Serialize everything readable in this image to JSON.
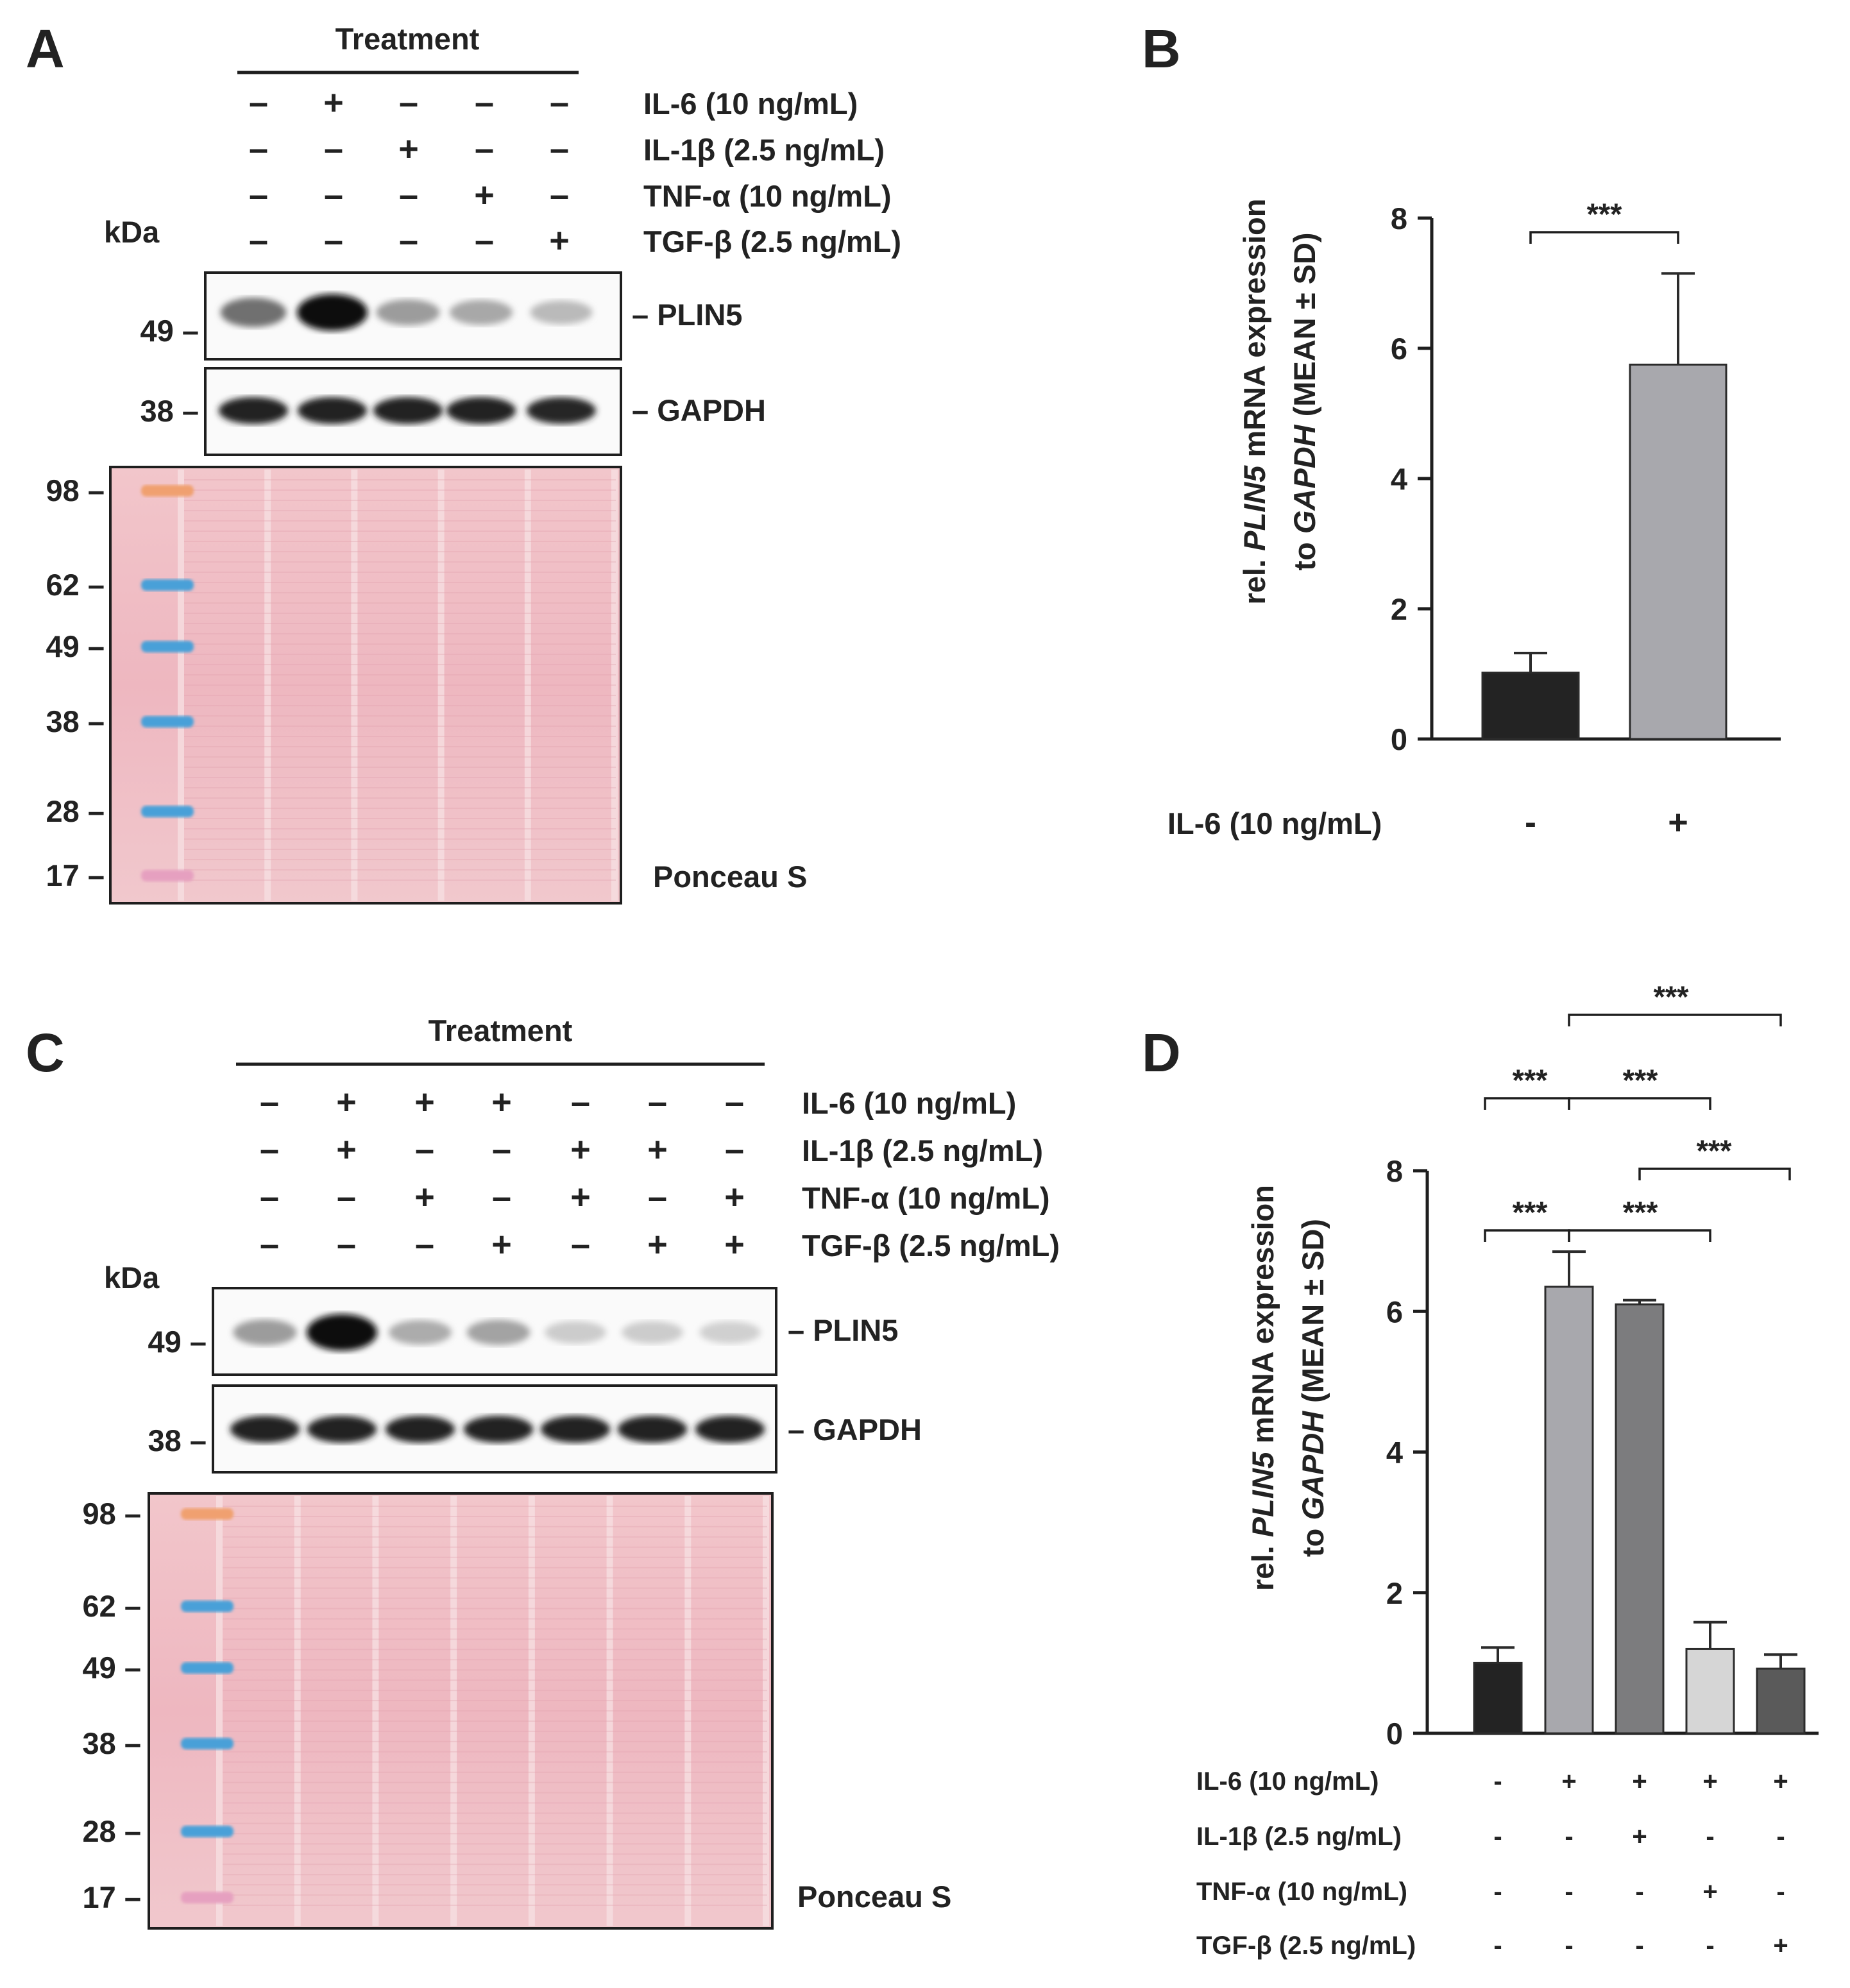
{
  "panels": {
    "a": "A",
    "b": "B",
    "c": "C",
    "d": "D"
  },
  "blot_a": {
    "treatment": "Treatment",
    "kda": "kDa",
    "conditions": [
      {
        "label": "IL-6 (10 ng/mL)",
        "signs": [
          "–",
          "+",
          "–",
          "–",
          "–"
        ]
      },
      {
        "label": "IL-1β (2.5 ng/mL)",
        "signs": [
          "–",
          "–",
          "+",
          "–",
          "–"
        ]
      },
      {
        "label": "TNF-α (10 ng/mL)",
        "signs": [
          "–",
          "–",
          "–",
          "+",
          "–"
        ]
      },
      {
        "label": "TGF-β (2.5 ng/mL)",
        "signs": [
          "–",
          "–",
          "–",
          "–",
          "+"
        ]
      }
    ],
    "plin5_label": "– PLIN5",
    "gapdh_label": "– GAPDH",
    "plin5_marker": "49 –",
    "gapdh_marker": "38 –",
    "ponceau_label": "Ponceau S",
    "ladder": [
      "98 –",
      "62 –",
      "49 –",
      "38 –",
      "28 –",
      "17 –"
    ],
    "plin5_intensity": [
      0.55,
      1.0,
      0.35,
      0.3,
      0.22
    ],
    "gapdh_intensity": [
      0.9,
      0.9,
      0.9,
      0.9,
      0.88
    ]
  },
  "blot_c": {
    "treatment": "Treatment",
    "kda": "kDa",
    "conditions": [
      {
        "label": "IL-6 (10 ng/mL)",
        "signs": [
          "–",
          "+",
          "+",
          "+",
          "–",
          "–",
          "–"
        ]
      },
      {
        "label": "IL-1β (2.5 ng/mL)",
        "signs": [
          "–",
          "+",
          "–",
          "–",
          "+",
          "+",
          "–"
        ]
      },
      {
        "label": "TNF-α (10 ng/mL)",
        "signs": [
          "–",
          "–",
          "+",
          "–",
          "+",
          "–",
          "+"
        ]
      },
      {
        "label": "TGF-β (2.5 ng/mL)",
        "signs": [
          "–",
          "–",
          "–",
          "+",
          "–",
          "+",
          "+"
        ]
      }
    ],
    "plin5_label": "– PLIN5",
    "gapdh_label": "– GAPDH",
    "plin5_marker": "49 –",
    "gapdh_marker": "38 –",
    "ponceau_label": "Ponceau S",
    "ladder": [
      "98 –",
      "62 –",
      "49 –",
      "38 –",
      "28 –",
      "17 –"
    ],
    "plin5_intensity": [
      0.35,
      1.0,
      0.28,
      0.32,
      0.14,
      0.14,
      0.12
    ],
    "gapdh_intensity": [
      0.9,
      0.9,
      0.9,
      0.9,
      0.9,
      0.9,
      0.9
    ]
  },
  "chart_data": [
    {
      "type": "bar",
      "title": "",
      "ylabel_parts": [
        {
          "text": "rel. ",
          "italic": false
        },
        {
          "text": "PLIN5",
          "italic": true
        },
        {
          "text": " mRNA expression",
          "italic": false
        }
      ],
      "ylabel2_parts": [
        {
          "text": "to ",
          "italic": false
        },
        {
          "text": "GAPDH",
          "italic": true
        },
        {
          "text": " (MEAN ± SD)",
          "italic": false
        }
      ],
      "ylim": [
        0,
        8
      ],
      "yticks": [
        "0",
        "2",
        "4",
        "6",
        "8"
      ],
      "values": [
        1.02,
        5.75
      ],
      "errors": [
        0.3,
        1.4
      ],
      "colors": [
        "#232323",
        "#a8a8ad"
      ],
      "condition_rows": [
        {
          "label": "IL-6 (10 ng/mL)",
          "signs": [
            "-",
            "+"
          ]
        }
      ],
      "significance": [
        {
          "from": 0,
          "to": 1,
          "label": "***"
        }
      ]
    },
    {
      "type": "bar",
      "title": "",
      "ylabel_parts": [
        {
          "text": "rel. ",
          "italic": false
        },
        {
          "text": "PLIN5",
          "italic": true
        },
        {
          "text": " mRNA expression",
          "italic": false
        }
      ],
      "ylabel2_parts": [
        {
          "text": "to ",
          "italic": false
        },
        {
          "text": "GAPDH",
          "italic": true
        },
        {
          "text": " (MEAN ± SD)",
          "italic": false
        }
      ],
      "ylim": [
        0,
        8
      ],
      "yticks": [
        "0",
        "2",
        "4",
        "6",
        "8"
      ],
      "values": [
        1.0,
        6.35,
        6.1,
        1.2,
        0.92
      ],
      "errors": [
        0.22,
        0.5,
        0.06,
        0.38,
        0.2
      ],
      "colors": [
        "#232323",
        "#a8a8ad",
        "#7c7c7e",
        "#d6d6d6",
        "#5a5a5a"
      ],
      "condition_rows": [
        {
          "label": "IL-6 (10 ng/mL)",
          "signs": [
            "-",
            "+",
            "+",
            "+",
            "+"
          ]
        },
        {
          "label": "IL-1β (2.5 ng/mL)",
          "signs": [
            "-",
            "-",
            "+",
            "-",
            "-"
          ]
        },
        {
          "label": "TNF-α (10 ng/mL)",
          "signs": [
            "-",
            "-",
            "-",
            "+",
            "-"
          ]
        },
        {
          "label": "TGF-β (2.5 ng/mL)",
          "signs": [
            "-",
            "-",
            "-",
            "-",
            "+"
          ]
        }
      ],
      "significance": [
        {
          "from": 1,
          "to": 4,
          "label": "***"
        },
        {
          "from": 0,
          "to": 1,
          "label": "***"
        },
        {
          "from": 1,
          "to": 3,
          "label": "***"
        },
        {
          "from": 2,
          "to": 4,
          "label": "***"
        },
        {
          "from": 0,
          "to": 1,
          "label": "***"
        },
        {
          "from": 1,
          "to": 3,
          "label": "***"
        }
      ]
    }
  ]
}
